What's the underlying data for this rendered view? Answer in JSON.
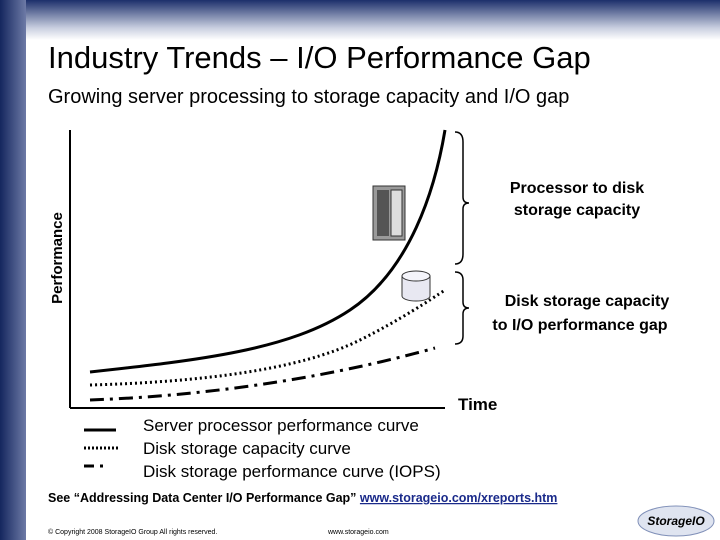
{
  "header": {
    "title": "Industry Trends – I/O Performance Gap",
    "subtitle": "Growing server processing to storage capacity and I/O gap"
  },
  "diagram": {
    "y_axis_label": "Performance",
    "x_axis_label": "Time",
    "annotations": [
      {
        "lines": [
          "Processor to disk",
          "storage capacity"
        ]
      },
      {
        "lines": [
          "Disk storage capacity",
          "to I/O performance gap"
        ]
      }
    ]
  },
  "legend": [
    "Server processor performance curve",
    "Disk storage capacity curve",
    "Disk storage performance curve (IOPS)"
  ],
  "footer": {
    "note": "See “Addressing Data Center I/O Performance Gap”",
    "link": "www.storageio.com/xreports.htm",
    "copyright": "© Copyright 2008 StorageIO Group All rights reserved.",
    "url": "www.storageio.com",
    "logo": "StorageIO"
  }
}
